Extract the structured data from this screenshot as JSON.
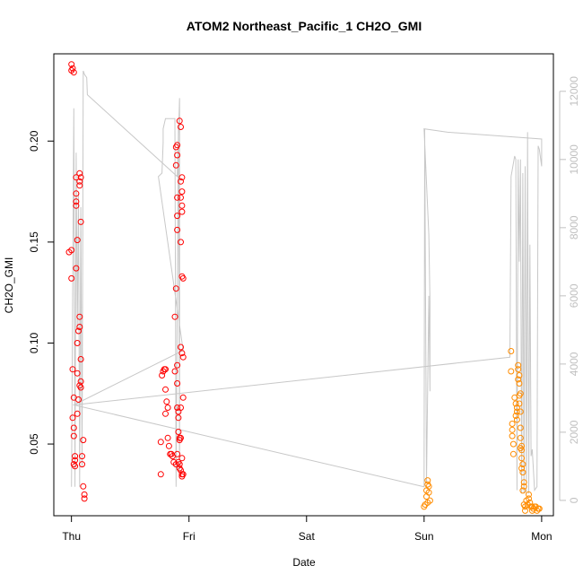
{
  "chart_data": {
    "type": "scatter",
    "title": "ATOM2 Northeast_Pacific_1 CH2O_GMI",
    "xlabel": "Date",
    "ylabel": "CH2O_GMI",
    "x_categories": [
      "Thu",
      "Fri",
      "Sat",
      "Sun",
      "Mon"
    ],
    "xlim": [
      -0.15,
      4.1
    ],
    "ylim": [
      0.0145,
      0.2432
    ],
    "yticks": [
      0.05,
      0.1,
      0.15,
      0.2
    ],
    "yticks_labels": [
      "0.05",
      "0.10",
      "0.15",
      "0.20"
    ],
    "y2lim": [
      -450,
      13100
    ],
    "y2ticks": [
      0,
      2000,
      4000,
      6000,
      8000,
      10000,
      12000
    ],
    "y2ticks_labels": [
      "0",
      "2000",
      "4000",
      "6000",
      "8000",
      "10000",
      "12000"
    ],
    "grid": false,
    "colors": {
      "series_red": "#ff0000",
      "series_orange": "#ff8c00",
      "altitude_line": "#c8c8c8",
      "axis": "#000000",
      "axis_right": "#c0c0c0"
    },
    "series": [
      {
        "color": "#ff0000",
        "points": [
          [
            0.0,
            0.238
          ],
          [
            0.01,
            0.236
          ],
          [
            0.0,
            0.235
          ],
          [
            0.02,
            0.234
          ],
          [
            -0.02,
            0.145
          ],
          [
            0.0,
            0.146
          ],
          [
            0.0,
            0.132
          ],
          [
            0.01,
            0.087
          ],
          [
            0.02,
            0.073
          ],
          [
            0.01,
            0.063
          ],
          [
            0.02,
            0.058
          ],
          [
            0.02,
            0.054
          ],
          [
            0.03,
            0.044
          ],
          [
            0.03,
            0.042
          ],
          [
            0.02,
            0.04
          ],
          [
            0.03,
            0.039
          ],
          [
            0.04,
            0.182
          ],
          [
            0.04,
            0.174
          ],
          [
            0.04,
            0.17
          ],
          [
            0.04,
            0.168
          ],
          [
            0.05,
            0.151
          ],
          [
            0.04,
            0.137
          ],
          [
            0.05,
            0.1
          ],
          [
            0.05,
            0.085
          ],
          [
            0.05,
            0.065
          ],
          [
            0.06,
            0.106
          ],
          [
            0.07,
            0.113
          ],
          [
            0.07,
            0.108
          ],
          [
            0.07,
            0.184
          ],
          [
            0.07,
            0.18
          ],
          [
            0.07,
            0.178
          ],
          [
            0.08,
            0.182
          ],
          [
            0.08,
            0.16
          ],
          [
            0.08,
            0.092
          ],
          [
            0.08,
            0.081
          ],
          [
            0.08,
            0.078
          ],
          [
            0.09,
            0.044
          ],
          [
            0.09,
            0.04
          ],
          [
            0.1,
            0.052
          ],
          [
            0.1,
            0.029
          ],
          [
            0.11,
            0.025
          ],
          [
            0.11,
            0.023
          ],
          [
            0.07,
            0.079
          ],
          [
            0.06,
            0.072
          ],
          [
            0.76,
            0.051
          ],
          [
            0.76,
            0.035
          ],
          [
            0.77,
            0.084
          ],
          [
            0.78,
            0.086
          ],
          [
            0.79,
            0.087
          ],
          [
            0.8,
            0.087
          ],
          [
            0.8,
            0.077
          ],
          [
            0.8,
            0.065
          ],
          [
            0.81,
            0.071
          ],
          [
            0.82,
            0.068
          ],
          [
            0.82,
            0.053
          ],
          [
            0.83,
            0.049
          ],
          [
            0.84,
            0.045
          ],
          [
            0.85,
            0.045
          ],
          [
            0.86,
            0.044
          ],
          [
            0.87,
            0.041
          ],
          [
            0.88,
            0.086
          ],
          [
            0.88,
            0.113
          ],
          [
            0.89,
            0.04
          ],
          [
            0.89,
            0.197
          ],
          [
            0.9,
            0.198
          ],
          [
            0.9,
            0.193
          ],
          [
            0.89,
            0.188
          ],
          [
            0.9,
            0.172
          ],
          [
            0.9,
            0.163
          ],
          [
            0.9,
            0.156
          ],
          [
            0.89,
            0.127
          ],
          [
            0.9,
            0.089
          ],
          [
            0.9,
            0.08
          ],
          [
            0.9,
            0.068
          ],
          [
            0.91,
            0.066
          ],
          [
            0.91,
            0.063
          ],
          [
            0.91,
            0.056
          ],
          [
            0.92,
            0.053
          ],
          [
            0.92,
            0.052
          ],
          [
            0.9,
            0.045
          ],
          [
            0.91,
            0.041
          ],
          [
            0.92,
            0.04
          ],
          [
            0.92,
            0.038
          ],
          [
            0.93,
            0.037
          ],
          [
            0.94,
            0.035
          ],
          [
            0.92,
            0.21
          ],
          [
            0.93,
            0.207
          ],
          [
            0.94,
            0.182
          ],
          [
            0.93,
            0.18
          ],
          [
            0.94,
            0.175
          ],
          [
            0.93,
            0.172
          ],
          [
            0.94,
            0.168
          ],
          [
            0.94,
            0.165
          ],
          [
            0.93,
            0.15
          ],
          [
            0.94,
            0.133
          ],
          [
            0.95,
            0.132
          ],
          [
            0.93,
            0.098
          ],
          [
            0.94,
            0.095
          ],
          [
            0.95,
            0.093
          ],
          [
            0.95,
            0.073
          ],
          [
            0.93,
            0.068
          ],
          [
            0.93,
            0.053
          ],
          [
            0.94,
            0.043
          ],
          [
            0.95,
            0.035
          ],
          [
            0.94,
            0.034
          ]
        ]
      },
      {
        "color": "#ff8c00",
        "points": [
          [
            3.0,
            0.019
          ],
          [
            3.01,
            0.02
          ],
          [
            3.02,
            0.024
          ],
          [
            3.02,
            0.027
          ],
          [
            3.03,
            0.03
          ],
          [
            3.03,
            0.032
          ],
          [
            3.04,
            0.029
          ],
          [
            3.04,
            0.026
          ],
          [
            3.05,
            0.022
          ],
          [
            3.03,
            0.021
          ],
          [
            3.74,
            0.096
          ],
          [
            3.74,
            0.086
          ],
          [
            3.75,
            0.06
          ],
          [
            3.75,
            0.057
          ],
          [
            3.75,
            0.054
          ],
          [
            3.76,
            0.05
          ],
          [
            3.76,
            0.045
          ],
          [
            3.77,
            0.073
          ],
          [
            3.78,
            0.07
          ],
          [
            3.79,
            0.068
          ],
          [
            3.79,
            0.066
          ],
          [
            3.78,
            0.064
          ],
          [
            3.79,
            0.062
          ],
          [
            3.8,
            0.089
          ],
          [
            3.8,
            0.087
          ],
          [
            3.81,
            0.084
          ],
          [
            3.8,
            0.082
          ],
          [
            3.81,
            0.08
          ],
          [
            3.82,
            0.075
          ],
          [
            3.81,
            0.074
          ],
          [
            3.81,
            0.07
          ],
          [
            3.82,
            0.066
          ],
          [
            3.82,
            0.058
          ],
          [
            3.82,
            0.053
          ],
          [
            3.82,
            0.048
          ],
          [
            3.83,
            0.049
          ],
          [
            3.83,
            0.047
          ],
          [
            3.83,
            0.043
          ],
          [
            3.83,
            0.038
          ],
          [
            3.84,
            0.04
          ],
          [
            3.84,
            0.036
          ],
          [
            3.85,
            0.031
          ],
          [
            3.85,
            0.029
          ],
          [
            3.84,
            0.027
          ],
          [
            3.85,
            0.02
          ],
          [
            3.86,
            0.019
          ],
          [
            3.86,
            0.017
          ],
          [
            3.87,
            0.022
          ],
          [
            3.88,
            0.02
          ],
          [
            3.89,
            0.025
          ],
          [
            3.89,
            0.023
          ],
          [
            3.9,
            0.021
          ],
          [
            3.91,
            0.019
          ],
          [
            3.92,
            0.019
          ],
          [
            3.92,
            0.017
          ],
          [
            3.93,
            0.018
          ],
          [
            3.94,
            0.019
          ],
          [
            3.95,
            0.019
          ],
          [
            3.96,
            0.017
          ],
          [
            3.97,
            0.018
          ],
          [
            3.98,
            0.018
          ]
        ]
      }
    ],
    "altitude_line": [
      [
        0.0,
        400
      ],
      [
        0.02,
        11500
      ],
      [
        0.03,
        400
      ],
      [
        0.04,
        10200
      ],
      [
        0.05,
        5000
      ],
      [
        0.06,
        9000
      ],
      [
        0.07,
        400
      ],
      [
        0.08,
        8600
      ],
      [
        0.09,
        1000
      ],
      [
        0.1,
        12600
      ],
      [
        0.11,
        12500
      ],
      [
        0.13,
        12400
      ],
      [
        0.135,
        11900
      ],
      [
        0.9,
        9500
      ],
      [
        0.92,
        11800
      ],
      [
        0.92,
        800
      ],
      [
        0.91,
        11000
      ],
      [
        0.89,
        400
      ],
      [
        0.88,
        11200
      ],
      [
        0.86,
        11200
      ],
      [
        0.8,
        11200
      ],
      [
        0.78,
        10900
      ],
      [
        0.78,
        10500
      ],
      [
        0.77,
        9600
      ],
      [
        0.74,
        9500
      ],
      [
        0.95,
        4400
      ],
      [
        0.02,
        2800
      ],
      [
        3.0,
        400
      ],
      [
        3.005,
        10900
      ],
      [
        3.02,
        500
      ],
      [
        3.04,
        6000
      ],
      [
        3.05,
        3200
      ],
      [
        3.05,
        5800
      ],
      [
        3.04,
        7800
      ],
      [
        3.0,
        10900
      ],
      [
        3.2,
        10800
      ],
      [
        4.0,
        10600
      ],
      [
        4.0,
        9800
      ],
      [
        3.98,
        10300
      ],
      [
        3.97,
        10400
      ],
      [
        3.96,
        400
      ],
      [
        3.94,
        300
      ],
      [
        3.92,
        1500
      ],
      [
        3.91,
        1300
      ],
      [
        3.9,
        7500
      ],
      [
        3.89,
        200
      ],
      [
        3.88,
        10800
      ],
      [
        3.87,
        200
      ],
      [
        3.86,
        9800
      ],
      [
        3.85,
        200
      ],
      [
        3.84,
        9600
      ],
      [
        3.83,
        200
      ],
      [
        3.82,
        10000
      ],
      [
        3.81,
        7000
      ],
      [
        3.8,
        10000
      ],
      [
        3.79,
        300
      ],
      [
        3.78,
        10000
      ],
      [
        3.77,
        10100
      ],
      [
        3.74,
        9500
      ],
      [
        3.73,
        4200
      ],
      [
        0.02,
        2800
      ]
    ]
  }
}
